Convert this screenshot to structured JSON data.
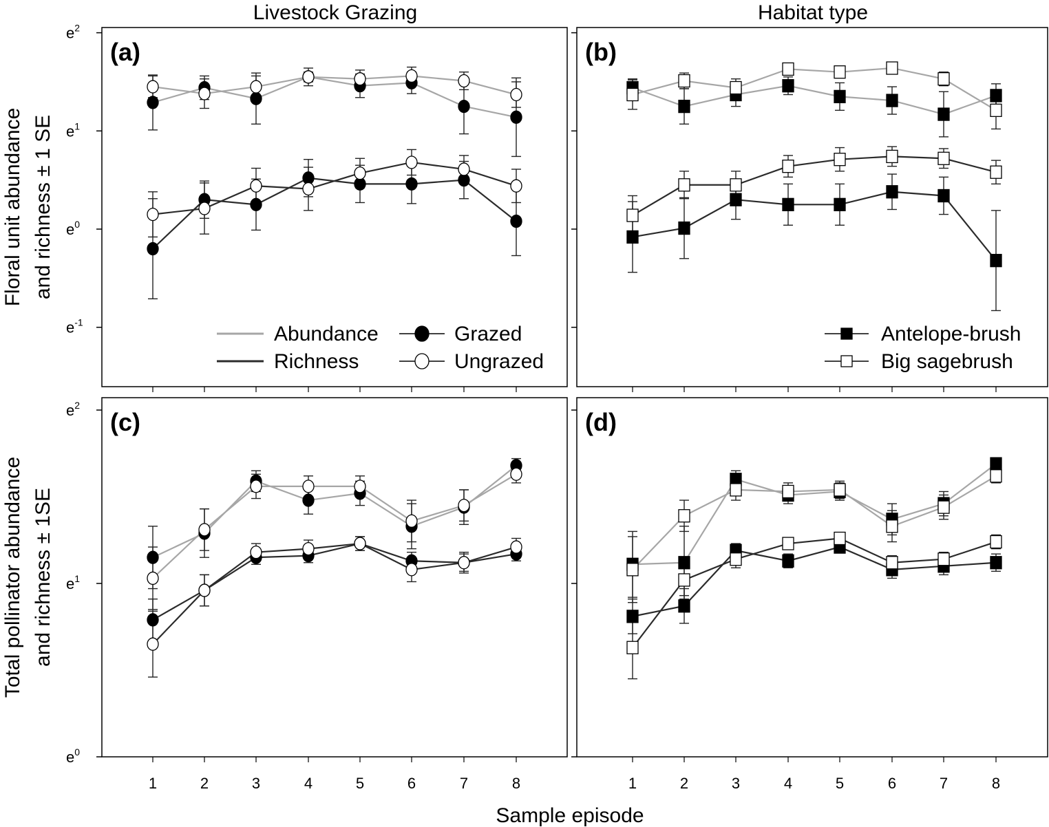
{
  "chart_data": {
    "type": "line",
    "column_titles": [
      "Livestock Grazing",
      "Habitat type"
    ],
    "xlabel": "Sample episode",
    "x": [
      1,
      2,
      3,
      4,
      5,
      6,
      7,
      8
    ],
    "rows": [
      {
        "ylabel_lines": [
          "Floral unit abundance",
          "and richness ± 1 SE"
        ],
        "yscale": "log (natural exponent)",
        "yticks": [
          {
            "v": 2,
            "label": "e",
            "sup": "2"
          },
          {
            "v": 1,
            "label": "e",
            "sup": "1"
          },
          {
            "v": 0,
            "label": "e",
            "sup": "0"
          },
          {
            "v": -1,
            "label": "e",
            "sup": "-1"
          }
        ],
        "ylim": [
          -1.6,
          2.06
        ]
      },
      {
        "ylabel_lines": [
          "Total pollinator abundance",
          "and richness ± 1SE"
        ],
        "yscale": "log (natural exponent)",
        "yticks": [
          {
            "v": 2,
            "label": "e",
            "sup": "2"
          },
          {
            "v": 1,
            "label": "e",
            "sup": "1"
          },
          {
            "v": 0,
            "label": "e",
            "sup": "0"
          }
        ],
        "ylim": [
          0,
          2.04
        ]
      }
    ],
    "legend_line_types": [
      {
        "label": "Abundance",
        "color": "#a6a6a6"
      },
      {
        "label": "Richness",
        "color": "#2b2b2b"
      }
    ],
    "panels": [
      {
        "label": "(a)",
        "row": 0,
        "col": 0,
        "legend": [
          {
            "label": "Grazed",
            "marker": "circle",
            "fill": "#000000"
          },
          {
            "label": "Ungrazed",
            "marker": "circle",
            "fill": "#ffffff"
          }
        ],
        "series": [
          {
            "name": "Abundance - Grazed",
            "metric": "abundance",
            "marker": "circle",
            "fill": "#000000",
            "values": [
              1.29,
              1.44,
              1.33,
              1.55,
              1.46,
              1.49,
              1.25,
              1.14
            ],
            "se": [
              0.28,
              0.12,
              0.26,
              0.05,
              0.12,
              0.11,
              0.28,
              0.4
            ]
          },
          {
            "name": "Abundance - Ungrazed",
            "metric": "abundance",
            "marker": "circle",
            "fill": "#ffffff",
            "values": [
              1.45,
              1.38,
              1.45,
              1.55,
              1.53,
              1.56,
              1.51,
              1.37
            ],
            "se": [
              0.11,
              0.15,
              0.11,
              0.09,
              0.09,
              0.09,
              0.09,
              0.13
            ]
          },
          {
            "name": "Richness - Grazed",
            "metric": "richness",
            "marker": "circle",
            "fill": "#000000",
            "values": [
              -0.2,
              0.3,
              0.25,
              0.52,
              0.46,
              0.46,
              0.5,
              0.08
            ],
            "se": [
              0.51,
              0.19,
              0.26,
              0.19,
              0.19,
              0.2,
              0.19,
              0.35
            ]
          },
          {
            "name": "Richness - Ungrazed",
            "metric": "richness",
            "marker": "circle",
            "fill": "#ffffff",
            "values": [
              0.15,
              0.21,
              0.44,
              0.41,
              0.57,
              0.68,
              0.61,
              0.44
            ],
            "se": [
              0.23,
              0.26,
              0.18,
              0.22,
              0.15,
              0.13,
              0.14,
              0.17
            ]
          }
        ]
      },
      {
        "label": "(b)",
        "row": 0,
        "col": 1,
        "legend": [
          {
            "label": "Antelope-brush",
            "marker": "square",
            "fill": "#000000"
          },
          {
            "label": "Big sagebrush",
            "marker": "square",
            "fill": "#ffffff"
          }
        ],
        "series": [
          {
            "name": "Abundance - Antelope-brush",
            "metric": "abundance",
            "marker": "square",
            "fill": "#000000",
            "values": [
              1.44,
              1.25,
              1.37,
              1.46,
              1.35,
              1.31,
              1.17,
              1.36
            ],
            "se": [
              0.09,
              0.18,
              0.12,
              0.09,
              0.14,
              0.14,
              0.23,
              0.12
            ]
          },
          {
            "name": "Abundance - Big sagebrush",
            "metric": "abundance",
            "marker": "square",
            "fill": "#ffffff",
            "values": [
              1.37,
              1.51,
              1.44,
              1.63,
              1.6,
              1.64,
              1.53,
              1.21
            ],
            "se": [
              0.15,
              0.08,
              0.09,
              0.05,
              0.06,
              0.05,
              0.07,
              0.19
            ]
          },
          {
            "name": "Richness - Antelope-brush",
            "metric": "richness",
            "marker": "square",
            "fill": "#000000",
            "values": [
              -0.08,
              0.01,
              0.3,
              0.25,
              0.25,
              0.38,
              0.34,
              -0.32
            ],
            "se": [
              0.36,
              0.31,
              0.2,
              0.21,
              0.21,
              0.18,
              0.19,
              0.51
            ]
          },
          {
            "name": "Richness - Big sagebrush",
            "metric": "richness",
            "marker": "square",
            "fill": "#ffffff",
            "values": [
              0.14,
              0.45,
              0.45,
              0.64,
              0.71,
              0.74,
              0.72,
              0.58
            ],
            "se": [
              0.2,
              0.14,
              0.14,
              0.11,
              0.12,
              0.1,
              0.1,
              0.12
            ]
          }
        ]
      },
      {
        "label": "(c)",
        "row": 1,
        "col": 0,
        "series": [
          {
            "name": "Abundance - Grazed",
            "metric": "abundance",
            "marker": "circle",
            "fill": "#000000",
            "values": [
              1.15,
              1.29,
              1.59,
              1.48,
              1.52,
              1.33,
              1.44,
              1.68
            ],
            "se": [
              0.18,
              0.14,
              0.06,
              0.08,
              0.07,
              0.13,
              0.1,
              0.04
            ]
          },
          {
            "name": "Abundance - Ungrazed",
            "metric": "abundance",
            "marker": "circle",
            "fill": "#ffffff",
            "values": [
              1.03,
              1.31,
              1.56,
              1.56,
              1.56,
              1.36,
              1.45,
              1.63
            ],
            "se": [
              0.18,
              0.12,
              0.07,
              0.06,
              0.06,
              0.12,
              0.09,
              0.05
            ]
          },
          {
            "name": "Richness - Grazed",
            "metric": "richness",
            "marker": "circle",
            "fill": "#000000",
            "values": [
              0.79,
              0.96,
              1.15,
              1.16,
              1.23,
              1.13,
              1.12,
              1.17
            ],
            "se": [
              0.12,
              0.09,
              0.04,
              0.04,
              0.04,
              0.05,
              0.05,
              0.04
            ]
          },
          {
            "name": "Richness - Ungrazed",
            "metric": "richness",
            "marker": "circle",
            "fill": "#ffffff",
            "values": [
              0.65,
              0.96,
              1.18,
              1.2,
              1.23,
              1.08,
              1.12,
              1.21
            ],
            "se": [
              0.19,
              0.09,
              0.05,
              0.05,
              0.04,
              0.07,
              0.06,
              0.05
            ]
          }
        ]
      },
      {
        "label": "(d)",
        "row": 1,
        "col": 1,
        "series": [
          {
            "name": "Abundance - Antelope-brush",
            "metric": "abundance",
            "marker": "square",
            "fill": "#000000",
            "values": [
              1.11,
              1.12,
              1.6,
              1.51,
              1.53,
              1.37,
              1.46,
              1.69
            ],
            "se": [
              0.19,
              0.21,
              0.05,
              0.05,
              0.05,
              0.09,
              0.07,
              0.03
            ]
          },
          {
            "name": "Abundance - Big sagebrush",
            "metric": "abundance",
            "marker": "square",
            "fill": "#ffffff",
            "values": [
              1.08,
              1.39,
              1.54,
              1.53,
              1.54,
              1.33,
              1.44,
              1.62
            ],
            "se": [
              0.19,
              0.09,
              0.06,
              0.05,
              0.05,
              0.09,
              0.07,
              0.04
            ]
          },
          {
            "name": "Richness - Antelope-brush",
            "metric": "richness",
            "marker": "square",
            "fill": "#000000",
            "values": [
              0.81,
              0.87,
              1.19,
              1.13,
              1.21,
              1.08,
              1.1,
              1.12
            ],
            "se": [
              0.1,
              0.1,
              0.04,
              0.04,
              0.03,
              0.05,
              0.05,
              0.05
            ]
          },
          {
            "name": "Richness - Big sagebrush",
            "metric": "richness",
            "marker": "square",
            "fill": "#ffffff",
            "values": [
              0.63,
              1.02,
              1.14,
              1.23,
              1.26,
              1.12,
              1.14,
              1.24
            ],
            "se": [
              0.18,
              0.09,
              0.05,
              0.03,
              0.03,
              0.04,
              0.04,
              0.04
            ]
          }
        ]
      }
    ]
  }
}
